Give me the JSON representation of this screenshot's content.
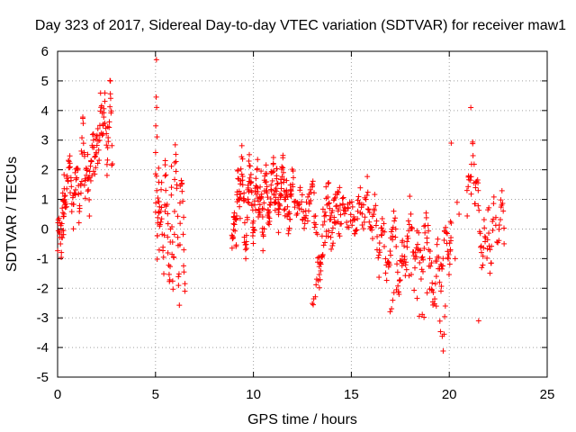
{
  "chart_data": {
    "type": "scatter",
    "title": "Day 323 of 2017, Sidereal Day-to-day VTEC variation (SDTVAR) for receiver maw1",
    "xlabel": "GPS time / hours",
    "ylabel": "SDTVAR / TECUs",
    "xlim": [
      0,
      25
    ],
    "ylim": [
      -5,
      6
    ],
    "xticks": [
      0,
      5,
      10,
      15,
      20,
      25
    ],
    "yticks": [
      -5,
      -4,
      -3,
      -2,
      -1,
      0,
      1,
      2,
      3,
      4,
      5,
      6
    ],
    "xtick_labels": [
      "0",
      "5",
      "10",
      "15",
      "20",
      "25"
    ],
    "ytick_labels": [
      "-5",
      "-4",
      "-3",
      "-2",
      "-1",
      "0",
      "1",
      "2",
      "3",
      "4",
      "5",
      "6"
    ],
    "grid": true,
    "marker": "+",
    "color": "#ff0000",
    "series": [
      {
        "name": "maw1",
        "segments": [
          {
            "points": [
              [
                0.0,
                -0.5
              ],
              [
                0.1,
                0.2
              ],
              [
                0.2,
                -0.8
              ],
              [
                0.25,
                1.0
              ],
              [
                0.3,
                0.3
              ],
              [
                0.35,
                1.8
              ],
              [
                0.4,
                0.5
              ],
              [
                0.5,
                1.5
              ],
              [
                0.6,
                2.2
              ],
              [
                0.7,
                1.2
              ],
              [
                0.8,
                0.4
              ],
              [
                0.9,
                1.6
              ],
              [
                1.0,
                2.0
              ],
              [
                1.1,
                0.8
              ],
              [
                1.2,
                1.5
              ],
              [
                1.3,
                3.5
              ],
              [
                1.4,
                1.6
              ],
              [
                1.5,
                2.2
              ],
              [
                1.6,
                1.0
              ],
              [
                1.7,
                1.8
              ],
              [
                1.8,
                2.8
              ],
              [
                1.9,
                2.0
              ],
              [
                2.0,
                3.3
              ],
              [
                2.1,
                2.5
              ],
              [
                2.2,
                4.2
              ],
              [
                2.3,
                3.0
              ],
              [
                2.4,
                4.6
              ],
              [
                2.5,
                2.0
              ],
              [
                2.6,
                3.5
              ],
              [
                2.7,
                4.9
              ],
              [
                2.8,
                2.2
              ]
            ],
            "spread": 0.6,
            "density": 6
          },
          {
            "points": [
              [
                5.0,
                0.5
              ],
              [
                5.05,
                5.3
              ],
              [
                5.1,
                -1.0
              ],
              [
                5.15,
                2.0
              ],
              [
                5.2,
                -0.3
              ],
              [
                5.3,
                1.2
              ],
              [
                5.4,
                -1.5
              ],
              [
                5.5,
                2.2
              ],
              [
                5.6,
                0.8
              ],
              [
                5.7,
                -2.2
              ],
              [
                5.8,
                1.8
              ],
              [
                5.9,
                -2.0
              ],
              [
                6.0,
                2.6
              ],
              [
                6.1,
                1.2
              ],
              [
                6.2,
                -2.3
              ],
              [
                6.3,
                2.0
              ],
              [
                6.4,
                0.3
              ],
              [
                6.5,
                -2.1
              ]
            ],
            "spread": 0.5,
            "density": 6
          },
          {
            "points": [
              [
                8.9,
                -0.4
              ],
              [
                9.0,
                0.2
              ],
              [
                9.1,
                -0.2
              ],
              [
                9.2,
                1.8
              ],
              [
                9.3,
                0.5
              ],
              [
                9.4,
                2.5
              ],
              [
                9.5,
                1.0
              ],
              [
                9.6,
                -0.8
              ],
              [
                9.7,
                0.8
              ],
              [
                9.8,
                2.2
              ],
              [
                9.9,
                1.5
              ],
              [
                10.0,
                -0.5
              ],
              [
                10.1,
                1.2
              ],
              [
                10.2,
                2.0
              ],
              [
                10.3,
                0.4
              ],
              [
                10.4,
                1.6
              ],
              [
                10.5,
                -0.6
              ],
              [
                10.6,
                2.2
              ],
              [
                10.7,
                1.0
              ],
              [
                10.8,
                0.2
              ],
              [
                10.9,
                1.4
              ],
              [
                11.0,
                2.0
              ],
              [
                11.1,
                0.8
              ],
              [
                11.2,
                1.8
              ],
              [
                11.3,
                0.3
              ],
              [
                11.4,
                1.3
              ],
              [
                11.5,
                2.3
              ],
              [
                11.6,
                0.6
              ],
              [
                11.7,
                1.5
              ],
              [
                11.8,
                -0.2
              ],
              [
                11.9,
                1.0
              ],
              [
                12.0,
                1.8
              ],
              [
                12.2,
                0.5
              ],
              [
                12.4,
                1.2
              ],
              [
                12.6,
                0.2
              ],
              [
                12.8,
                0.8
              ],
              [
                13.0,
                1.6
              ],
              [
                13.2,
                0.0
              ],
              [
                13.4,
                -1.8
              ],
              [
                13.6,
                0.6
              ],
              [
                13.8,
                1.4
              ],
              [
                14.0,
                -0.5
              ],
              [
                14.2,
                0.8
              ],
              [
                14.4,
                0.2
              ],
              [
                14.6,
                1.0
              ],
              [
                14.8,
                0.4
              ],
              [
                15.0,
                0.6
              ],
              [
                15.2,
                -0.2
              ],
              [
                15.4,
                1.2
              ],
              [
                15.6,
                0.3
              ],
              [
                15.8,
                1.6
              ],
              [
                16.0,
                -0.3
              ],
              [
                16.2,
                0.8
              ],
              [
                16.4,
                -1.2
              ],
              [
                16.6,
                0.4
              ],
              [
                16.8,
                -1.6
              ],
              [
                17.0,
                -0.8
              ],
              [
                17.2,
                0.6
              ],
              [
                17.4,
                -2.0
              ],
              [
                17.6,
                -0.6
              ],
              [
                17.8,
                -1.2
              ],
              [
                18.0,
                0.8
              ],
              [
                18.2,
                -1.0
              ],
              [
                18.4,
                -0.2
              ],
              [
                18.6,
                -1.6
              ],
              [
                18.8,
                0.4
              ],
              [
                19.0,
                -1.0
              ],
              [
                19.2,
                -2.4
              ],
              [
                19.4,
                -0.6
              ],
              [
                19.6,
                -1.8
              ],
              [
                19.8,
                0.0
              ],
              [
                20.0,
                -1.2
              ],
              [
                20.1,
                0.2
              ]
            ],
            "spread": 0.45,
            "density": 8
          },
          {
            "points": [
              [
                13.0,
                -2.6
              ],
              [
                13.2,
                -2.0
              ],
              [
                13.4,
                -1.2
              ],
              [
                13.6,
                -0.6
              ],
              [
                13.8,
                -0.1
              ],
              [
                14.0,
                0.6
              ],
              [
                14.2,
                1.1
              ],
              [
                14.4,
                1.4
              ]
            ],
            "spread": 0.15,
            "density": 4
          },
          {
            "points": [
              [
                17.0,
                -2.8
              ],
              [
                17.2,
                -2.2
              ],
              [
                17.5,
                -1.6
              ],
              [
                17.8,
                -1.0
              ],
              [
                18.2,
                -2.2
              ],
              [
                18.6,
                -3.1
              ],
              [
                19.0,
                -2.0
              ],
              [
                19.5,
                -3.3
              ],
              [
                19.7,
                -4.1
              ],
              [
                19.8,
                -2.6
              ]
            ],
            "spread": 0.3,
            "density": 3
          },
          {
            "points": [
              [
                20.9,
                0.8
              ],
              [
                21.0,
                2.0
              ],
              [
                21.1,
                1.2
              ],
              [
                21.2,
                3.2
              ],
              [
                21.3,
                0.6
              ],
              [
                21.4,
                1.6
              ],
              [
                21.5,
                1.0
              ],
              [
                21.6,
                -0.4
              ],
              [
                21.7,
                -1.2
              ],
              [
                21.8,
                0.2
              ],
              [
                21.9,
                -0.8
              ],
              [
                22.0,
                0.6
              ],
              [
                22.1,
                -1.6
              ],
              [
                22.2,
                -0.2
              ],
              [
                22.3,
                0.8
              ],
              [
                22.5,
                -0.6
              ],
              [
                22.6,
                0.4
              ],
              [
                22.7,
                1.1
              ],
              [
                22.8,
                -0.5
              ]
            ],
            "spread": 0.4,
            "density": 4
          },
          {
            "points": [
              [
                20.1,
                2.9
              ],
              [
                21.1,
                4.1
              ],
              [
                21.5,
                -3.1
              ],
              [
                20.3,
                -1.0
              ],
              [
                20.4,
                0.9
              ],
              [
                20.5,
                0.5
              ]
            ],
            "spread": 0.05,
            "density": 1
          }
        ]
      }
    ]
  }
}
